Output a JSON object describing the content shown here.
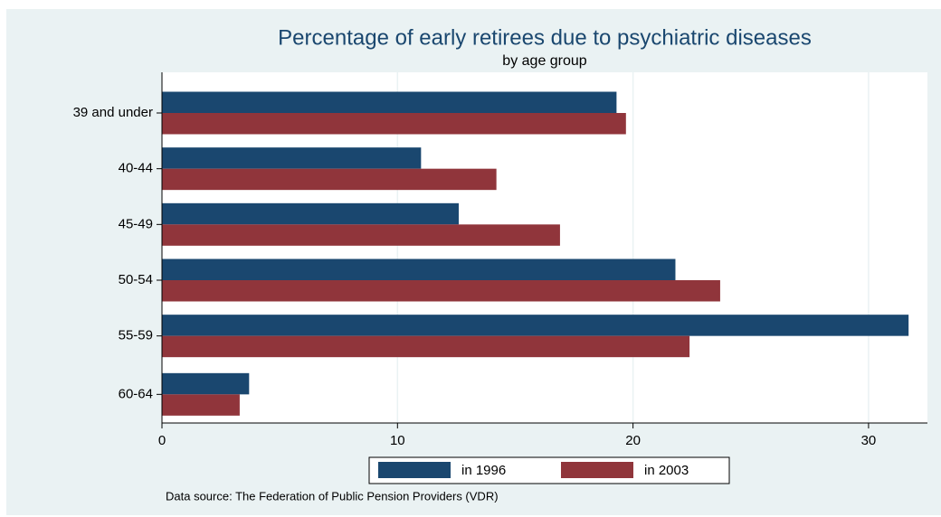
{
  "chart_data": {
    "type": "hbar",
    "title": "Percentage of early retirees due to psychiatric diseases",
    "subtitle": "by age group",
    "categories": [
      "39 and under",
      "40-44",
      "45-49",
      "50-54",
      "55-59",
      "60-64"
    ],
    "series": [
      {
        "name": "in 1996",
        "color": "#1a476f",
        "values": [
          19.3,
          11.0,
          12.6,
          21.8,
          31.7,
          3.7
        ]
      },
      {
        "name": "in 2003",
        "color": "#90353b",
        "values": [
          19.7,
          14.2,
          16.9,
          23.7,
          22.4,
          3.3
        ]
      }
    ],
    "xlim": [
      0,
      32.5
    ],
    "xticks": [
      0,
      10,
      20,
      30
    ],
    "grid": true,
    "legend": "bottom",
    "note": "Data source: The Federation of Public Pension Providers (VDR)"
  }
}
